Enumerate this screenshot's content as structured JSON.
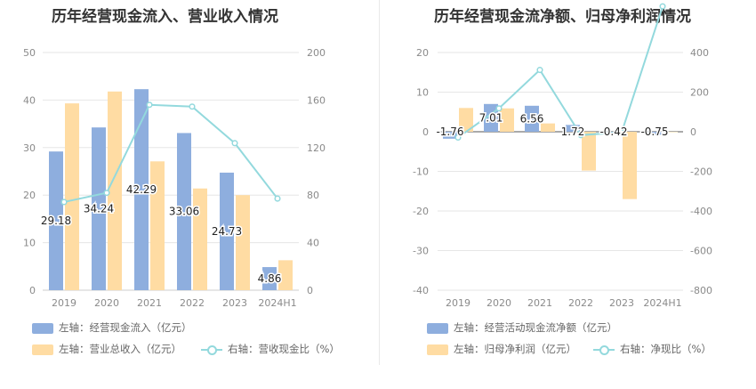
{
  "chart_data": [
    {
      "type": "bar",
      "title": "历年经营现金流入、营业收入情况",
      "categories": [
        "2019",
        "2020",
        "2021",
        "2022",
        "2023",
        "2024H1"
      ],
      "left_axis": {
        "ylim": [
          0,
          50
        ],
        "ticks": [
          "0",
          "10",
          "20",
          "30",
          "40",
          "50"
        ]
      },
      "right_axis": {
        "ylim": [
          0,
          200
        ],
        "ticks": [
          "0",
          "40",
          "80",
          "120",
          "160",
          "200"
        ]
      },
      "grid": true,
      "legend_position": "bottom",
      "series": [
        {
          "name": "左轴：经营现金流入（亿元）",
          "type": "bar",
          "axis": "left",
          "color": "#8eaede",
          "values": [
            29.18,
            34.24,
            42.29,
            33.06,
            24.73,
            4.86
          ],
          "labels": [
            "29.18",
            "34.24",
            "42.29",
            "33.06",
            "24.73",
            "4.86"
          ]
        },
        {
          "name": "左轴：营业总收入（亿元）",
          "type": "bar",
          "axis": "left",
          "color": "#ffdca3",
          "values": [
            39.3,
            41.8,
            27.1,
            21.4,
            20.0,
            6.3
          ]
        },
        {
          "name": "右轴：营收现金比（%）",
          "type": "line",
          "axis": "right",
          "color": "#93d9dd",
          "values": [
            74.2,
            81.9,
            156.0,
            154.5,
            123.7,
            77.1
          ]
        }
      ]
    },
    {
      "type": "bar",
      "title": "历年经营现金流净额、归母净利润情况",
      "categories": [
        "2019",
        "2020",
        "2021",
        "2022",
        "2023",
        "2024H1"
      ],
      "left_axis": {
        "ylim": [
          -40,
          20
        ],
        "ticks": [
          "-40",
          "-30",
          "-20",
          "-10",
          "0",
          "10",
          "20"
        ]
      },
      "right_axis": {
        "ylim": [
          -800,
          400
        ],
        "ticks": [
          "-800",
          "-600",
          "-400",
          "-200",
          "0",
          "200",
          "400"
        ]
      },
      "grid": true,
      "legend_position": "bottom",
      "series": [
        {
          "name": "左轴：经营活动现金流净额（亿元）",
          "type": "bar",
          "axis": "left",
          "color": "#8eaede",
          "values": [
            -1.76,
            7.01,
            6.56,
            1.72,
            -0.42,
            -0.75
          ],
          "labels": [
            "-1.76",
            "7.01",
            "6.56",
            "1.72",
            "-0.42",
            "-0.75"
          ]
        },
        {
          "name": "左轴：归母净利润（亿元）",
          "type": "bar",
          "axis": "left",
          "color": "#ffdca3",
          "values": [
            6.0,
            5.9,
            2.1,
            -9.8,
            -17.0,
            -0.1
          ]
        },
        {
          "name": "右轴：净现比（%）",
          "type": "line",
          "axis": "right",
          "color": "#93d9dd",
          "values": [
            -29,
            118,
            312,
            -17,
            -3,
            633
          ]
        }
      ]
    }
  ]
}
